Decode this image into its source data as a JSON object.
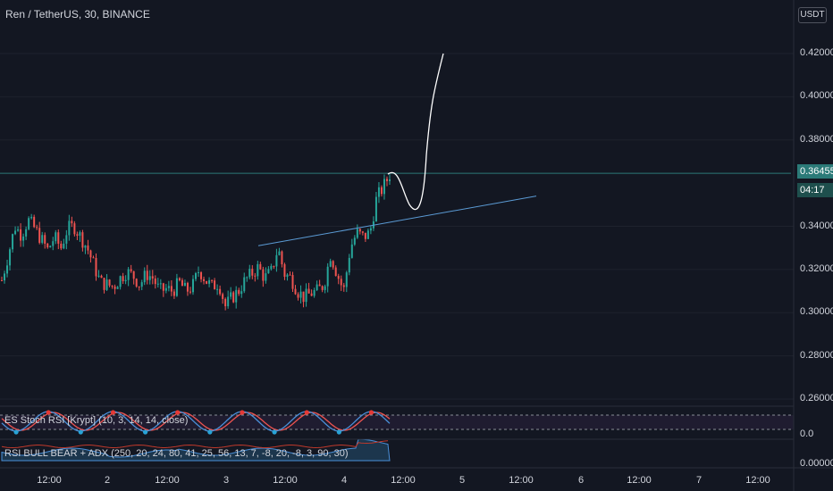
{
  "header": {
    "title": "Ren / TetherUS, 30, BINANCE",
    "currency_button": "USDT"
  },
  "price_axis": {
    "labels": [
      "0.42000",
      "0.40000",
      "0.38000",
      "0.34000",
      "0.32000",
      "0.30000",
      "0.28000",
      "0.26000"
    ],
    "current_price": "0.36455",
    "countdown": "04:17"
  },
  "time_axis": {
    "labels": [
      "12:00",
      "2",
      "12:00",
      "3",
      "12:00",
      "4",
      "12:00",
      "5",
      "12:00",
      "6",
      "12:00",
      "7",
      "12:00"
    ]
  },
  "indicators": {
    "stoch_rsi": {
      "label": "ES Stoch RSI [Krypt] (10, 3, 14, 14, close)",
      "scale_label": "0.0"
    },
    "rsi_bull_bear": {
      "label": "RSI BULL BEAR + ADX (250, 20, 24, 80, 41, 25, 56, 13, 7, -8, 20, -8, 3, 90, 30)",
      "scale_label": "0.00000"
    }
  },
  "colors": {
    "background": "#131722",
    "up": "#26a69a",
    "down": "#ef5350",
    "trendline": "#5b9bd5",
    "drawing": "#ffffff",
    "price_badge": "#2b7a78"
  },
  "chart_data": {
    "type": "candlestick",
    "title": "Ren / TetherUS, 30, BINANCE",
    "ylim": [
      0.25,
      0.425
    ],
    "ytick_values": [
      0.42,
      0.4,
      0.38,
      0.34,
      0.32,
      0.3,
      0.28,
      0.26
    ],
    "current_price": 0.36455,
    "close_path": [
      0.315,
      0.327,
      0.34,
      0.336,
      0.343,
      0.339,
      0.334,
      0.329,
      0.335,
      0.33,
      0.339,
      0.34,
      0.335,
      0.33,
      0.322,
      0.314,
      0.313,
      0.312,
      0.316,
      0.319,
      0.317,
      0.313,
      0.318,
      0.316,
      0.31,
      0.311,
      0.31,
      0.314,
      0.31,
      0.312,
      0.32,
      0.315,
      0.312,
      0.314,
      0.303,
      0.307,
      0.31,
      0.315,
      0.318,
      0.321,
      0.316,
      0.319,
      0.33,
      0.318,
      0.316,
      0.31,
      0.307,
      0.309,
      0.31,
      0.313,
      0.327,
      0.318,
      0.31,
      0.33,
      0.337,
      0.335,
      0.337,
      0.353,
      0.358,
      0.364
    ],
    "trendline": {
      "start": 0.331,
      "end": 0.354
    },
    "projection": {
      "end": 0.42
    }
  }
}
